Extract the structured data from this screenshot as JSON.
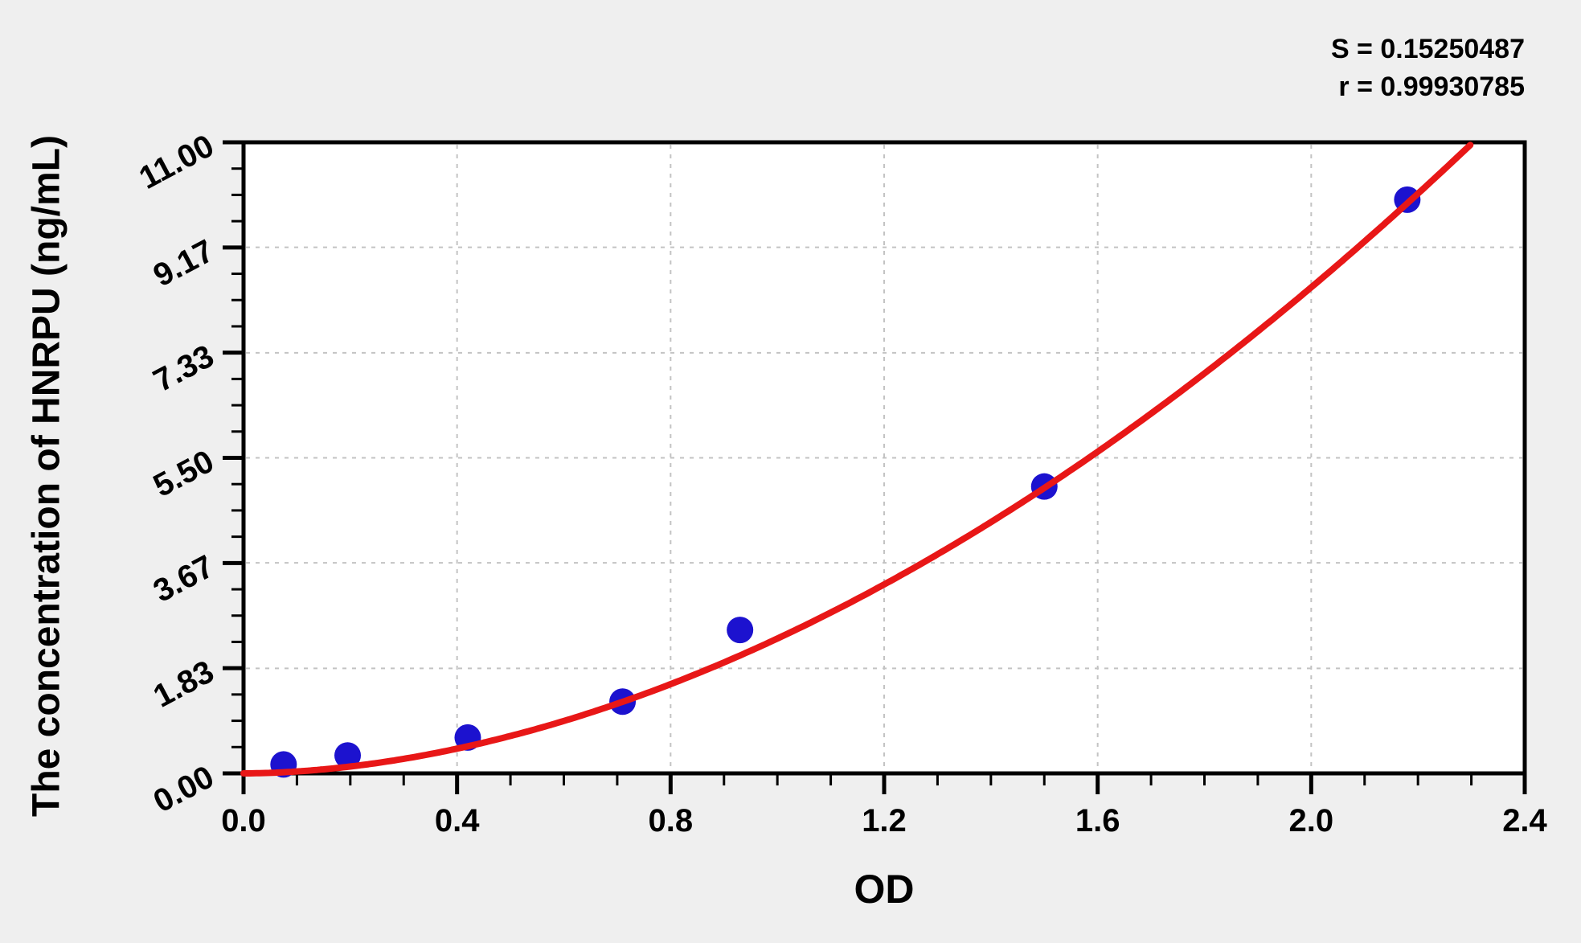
{
  "chart_data": {
    "type": "scatter",
    "title": "",
    "xlabel": "OD",
    "ylabel": "The concentration of HNRPU (ng/mL)",
    "annotation_lines": [
      "S = 0.15250487",
      "r = 0.99930785"
    ],
    "stats": {
      "S": "0.15250487",
      "r": "0.99930785"
    },
    "xlim": [
      0,
      2.4
    ],
    "ylim": [
      0,
      11.0
    ],
    "x_tick_labels": [
      "0.0",
      "0.4",
      "0.8",
      "1.2",
      "1.6",
      "2.0",
      "2.4"
    ],
    "x_minor_step": 0.1,
    "y_tick_labels": [
      "0.00",
      "1.83",
      "3.67",
      "5.50",
      "7.33",
      "9.17",
      "11.00"
    ],
    "y_minor_divisions": 4,
    "grid": {
      "show": true,
      "style": "dashed",
      "color": "#c3c3c3",
      "at_x": [
        0.4,
        0.8,
        1.2,
        1.6,
        2.0
      ],
      "at_y": [
        1.83,
        3.67,
        5.5,
        7.33,
        9.17
      ]
    },
    "legend": "none",
    "points": [
      {
        "od": 0.075,
        "conc": 0.156
      },
      {
        "od": 0.195,
        "conc": 0.3125
      },
      {
        "od": 0.42,
        "conc": 0.625
      },
      {
        "od": 0.71,
        "conc": 1.25
      },
      {
        "od": 0.93,
        "conc": 2.5
      },
      {
        "od": 1.5,
        "conc": 5.0
      },
      {
        "od": 2.18,
        "conc": 10.0
      }
    ],
    "fit_curve": {
      "formula": "conc = A * OD^p",
      "A": 2.35,
      "p": 1.85,
      "od_range": [
        0,
        2.303
      ]
    },
    "colors": {
      "point": "#1c12cf",
      "curve": "#e81717",
      "axis": "#000000",
      "plot_bg": "#ffffff",
      "page_bg": "#efefef"
    }
  }
}
